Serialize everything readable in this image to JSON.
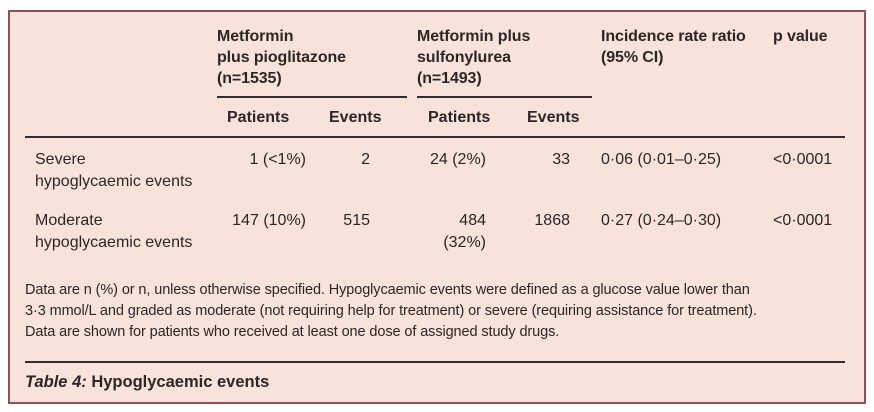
{
  "colors": {
    "panel_background": "#f8e2da",
    "panel_border": "#8d5157",
    "rule": "#332d2f",
    "text": "#2b2627"
  },
  "header": {
    "group1_title": "Metformin\nplus pioglitazone\n(n=1535)",
    "group2_title": "Metformin plus\nsulfonylurea\n(n=1493)",
    "irr_title": "Incidence rate ratio\n(95% CI)",
    "pvalue_title": "p value",
    "sub_patients": "Patients",
    "sub_events": "Events"
  },
  "rows": [
    {
      "label": "Severe\nhypoglycaemic events",
      "g1_patients": "1 (<1%)",
      "g1_events": "2",
      "g2_patients": "24 (2%)",
      "g2_events": "33",
      "irr": "0·06 (0·01–0·25)",
      "p": "<0·0001"
    },
    {
      "label": "Moderate\nhypoglycaemic events",
      "g1_patients": "147 (10%)",
      "g1_events": "515",
      "g2_patients": "484 (32%)",
      "g2_events": "1868",
      "irr": "0·27 (0·24–0·30)",
      "p": "<0·0001"
    }
  ],
  "footnote": "Data are n (%) or n, unless otherwise specified. Hypoglycaemic events were defined as a glucose value lower than\n3·3 mmol/L and graded as moderate (not requiring help for treatment) or severe (requiring assistance for treatment).\nData are shown for patients who received at least one dose of assigned study drugs.",
  "caption": {
    "table_label": "Table 4:",
    "title": " Hypoglycaemic events"
  }
}
